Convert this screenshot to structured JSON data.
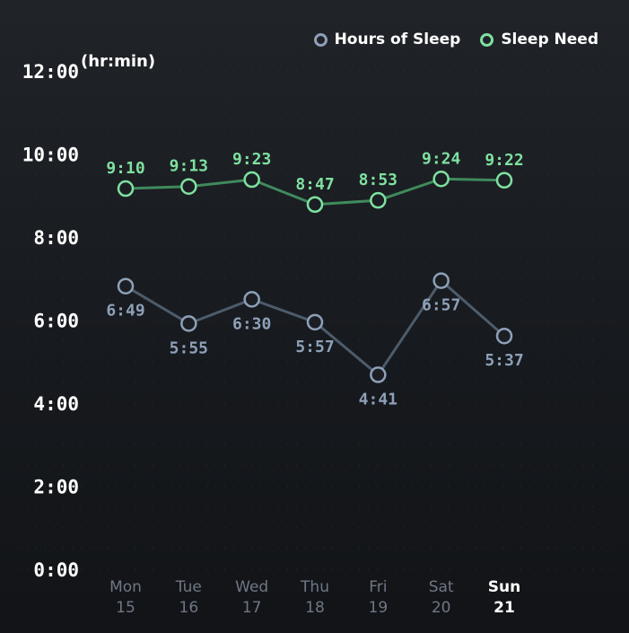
{
  "chart_data": {
    "type": "line",
    "unit_label": "(hr:min)",
    "ylim": [
      0,
      12
    ],
    "yticks": [
      "0:00",
      "2:00",
      "4:00",
      "6:00",
      "8:00",
      "10:00",
      "12:00"
    ],
    "ytick_values": [
      0,
      2,
      4,
      6,
      8,
      10,
      12
    ],
    "categories": [
      {
        "day": "Mon",
        "date": "15"
      },
      {
        "day": "Tue",
        "date": "16"
      },
      {
        "day": "Wed",
        "date": "17"
      },
      {
        "day": "Thu",
        "date": "18"
      },
      {
        "day": "Fri",
        "date": "19"
      },
      {
        "day": "Sat",
        "date": "20"
      },
      {
        "day": "Sun",
        "date": "21"
      }
    ],
    "highlighted_category": 6,
    "legend_position": "top-right",
    "grid": true,
    "series": [
      {
        "name": "Hours of Sleep",
        "color": "#8ea0b8",
        "line_color": "#4d5b6b",
        "values": [
          6.817,
          5.917,
          6.5,
          5.95,
          4.683,
          6.95,
          5.617
        ],
        "labels": [
          "6:49",
          "5:55",
          "6:30",
          "5:57",
          "4:41",
          "6:57",
          "5:37"
        ],
        "label_position": [
          "below",
          "below",
          "below",
          "below",
          "below",
          "below",
          "below"
        ]
      },
      {
        "name": "Sleep Need",
        "color": "#7fe0a0",
        "line_color": "#3f8a5c",
        "values": [
          9.167,
          9.217,
          9.383,
          8.783,
          8.883,
          9.4,
          9.367
        ],
        "labels": [
          "9:10",
          "9:13",
          "9:23",
          "8:47",
          "8:53",
          "9:24",
          "9:22"
        ],
        "label_position": [
          "above",
          "above",
          "above",
          "above",
          "above",
          "above",
          "above"
        ]
      }
    ]
  }
}
